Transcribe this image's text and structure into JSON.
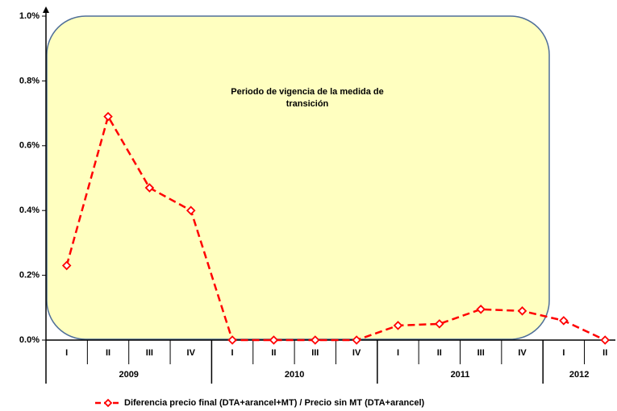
{
  "chart_data": {
    "type": "line",
    "years": [
      {
        "label": "2009",
        "quarters": [
          "I",
          "II",
          "III",
          "IV"
        ]
      },
      {
        "label": "2010",
        "quarters": [
          "I",
          "II",
          "III",
          "IV"
        ]
      },
      {
        "label": "2011",
        "quarters": [
          "I",
          "II",
          "III",
          "IV"
        ]
      },
      {
        "label": "2012",
        "quarters": [
          "I",
          "II"
        ]
      }
    ],
    "series": [
      {
        "name": "Diferencia precio final (DTA+arancel+MT) / Precio sin MT (DTA+arancel)",
        "color": "#ff0000",
        "values": [
          0.23,
          0.69,
          0.47,
          0.4,
          0,
          0,
          0,
          0,
          0.045,
          0.05,
          0.095,
          0.09,
          0.06,
          0
        ]
      }
    ],
    "ylim": [
      0,
      1.0
    ],
    "yticks": [
      {
        "value": 0,
        "label": "0.0%"
      },
      {
        "value": 0.2,
        "label": "0.2%"
      },
      {
        "value": 0.4,
        "label": "0.4%"
      },
      {
        "value": 0.6,
        "label": "0.6%"
      },
      {
        "value": 0.8,
        "label": "0.8%"
      },
      {
        "value": 1.0,
        "label": "1.0%"
      }
    ],
    "annotation": [
      "Periodo de vigencia de la medida de",
      "transición"
    ],
    "legend": "bottom"
  }
}
